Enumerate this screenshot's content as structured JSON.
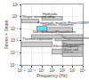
{
  "chart_data": {
    "type": "range",
    "xlabel": "Frequency (Hz)",
    "ylabel": "Stress × Strain",
    "xlim": [
      -2,
      4
    ],
    "ylim": [
      -4,
      1
    ],
    "xticks": [
      {
        "value": -2,
        "label": "10⁻²"
      },
      {
        "value": -1,
        "label": "10⁻¹"
      },
      {
        "value": 0,
        "label": "10⁰"
      },
      {
        "value": 1,
        "label": "10¹"
      },
      {
        "value": 2,
        "label": "10²"
      },
      {
        "value": 3,
        "label": "10³"
      },
      {
        "value": 4,
        "label": "10⁴"
      }
    ],
    "yticks": [
      {
        "value": -4,
        "label": "10⁻⁴"
      },
      {
        "value": -3,
        "label": "10⁻³"
      },
      {
        "value": -2,
        "label": "10⁻²"
      },
      {
        "value": -1,
        "label": "10⁻¹"
      },
      {
        "value": 0,
        "label": "10⁰"
      },
      {
        "value": 1,
        "label": "10¹"
      }
    ],
    "grid": true,
    "bars": [
      {
        "label": "Shape memory alloy",
        "x": [
          -2,
          -0.3
        ],
        "y": [
          -0.52,
          -0.22
        ],
        "color": "#cccccc"
      },
      {
        "label": "Hydraulic",
        "x": [
          0,
          2
        ],
        "y": [
          -0.3,
          0.0
        ],
        "color": "#cccccc"
      },
      {
        "label": "Dielectric elastomer",
        "x": [
          0,
          3
        ],
        "y": [
          -1.3,
          -0.9
        ],
        "color": "#cccccc"
      },
      {
        "label": "Piezoelectric",
        "x": [
          1.3,
          4
        ],
        "y": [
          -2.0,
          -1.5
        ],
        "color": "#cccccc"
      },
      {
        "label": "Pneumatic muscle (Festo DMSP40)",
        "x": [
          -0.5,
          0.5
        ],
        "y": [
          -1.2,
          -0.8
        ],
        "color": "#66ddee"
      },
      {
        "label": "Natural muscle",
        "x": [
          -1,
          2
        ],
        "y": [
          -1.8,
          -1.5
        ],
        "color": "#cccccc"
      },
      {
        "label": "Thermal expansion",
        "x": [
          -2,
          1
        ],
        "y": [
          -2.5,
          -2.1
        ],
        "color": "#cccccc"
      },
      {
        "label": "Magnetostrictive",
        "x": [
          2,
          4
        ],
        "y": [
          -2.4,
          -2.0
        ],
        "color": "#cccccc"
      },
      {
        "label": "Electromagnetic",
        "x": [
          1,
          3
        ],
        "y": [
          -3.1,
          -2.7
        ],
        "color": "#cccccc"
      },
      {
        "label": "Piezoceramic",
        "x": [
          2,
          4
        ],
        "y": [
          -2.9,
          -2.5
        ],
        "color": "#cccccc"
      },
      {
        "label": "Voice coil",
        "x": [
          2,
          4
        ],
        "y": [
          -3.3,
          -3.0
        ],
        "color": "#cccccc"
      }
    ]
  }
}
